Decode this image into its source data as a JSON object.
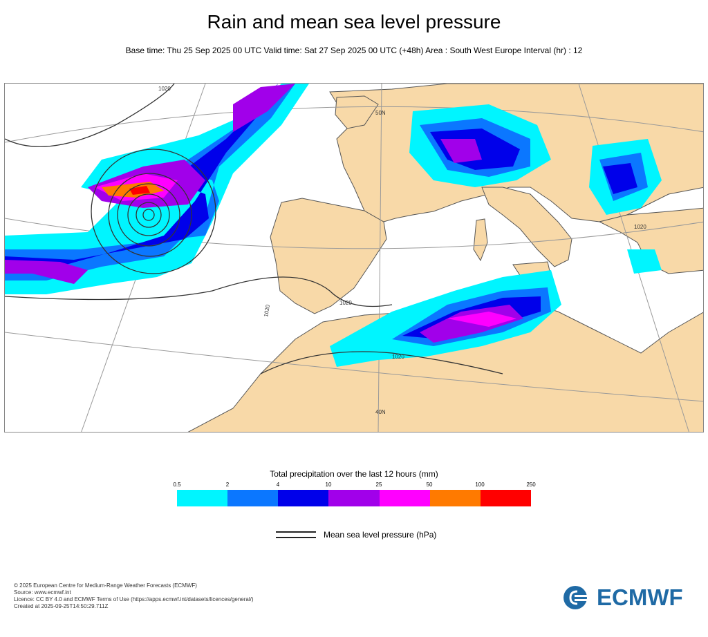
{
  "title": "Rain and mean sea level pressure",
  "subtitle": "Base time: Thu 25 Sep 2025 00 UTC Valid time: Sat 27 Sep 2025 00 UTC (+48h) Area : South West Europe Interval (hr) : 12",
  "map": {
    "contour_labels": [
      "1020",
      "1020",
      "1020",
      "1020",
      "1020"
    ],
    "graticule_labels": [
      "50N",
      "40N"
    ],
    "colors": {
      "land": "#f8d9a8",
      "sea": "#ffffff",
      "coast": "#555555",
      "isobar": "#333333",
      "graticule": "#999999"
    }
  },
  "legend": {
    "title": "Total precipitation over the last 12 hours (mm)",
    "ticks": [
      "0.5",
      "2",
      "4",
      "10",
      "25",
      "50",
      "100",
      "250"
    ],
    "colors": [
      "#00f5ff",
      "#0b77ff",
      "#0000ea",
      "#a100ea",
      "#ff00ff",
      "#ff7a00",
      "#ff0000"
    ],
    "isobar_label": "Mean sea level pressure (hPa)"
  },
  "footer": {
    "lines": [
      "© 2025 European Centre for Medium-Range Weather Forecasts (ECMWF)",
      "Source: www.ecmwf.int",
      "Licence: CC BY 4.0 and ECMWF Terms of Use (https://apps.ecmwf.int/datasets/licences/general/)",
      "Created at 2025-09-25T14:50:29.711Z"
    ]
  },
  "logo": {
    "text": "ECMWF",
    "color": "#1f6aa5"
  }
}
